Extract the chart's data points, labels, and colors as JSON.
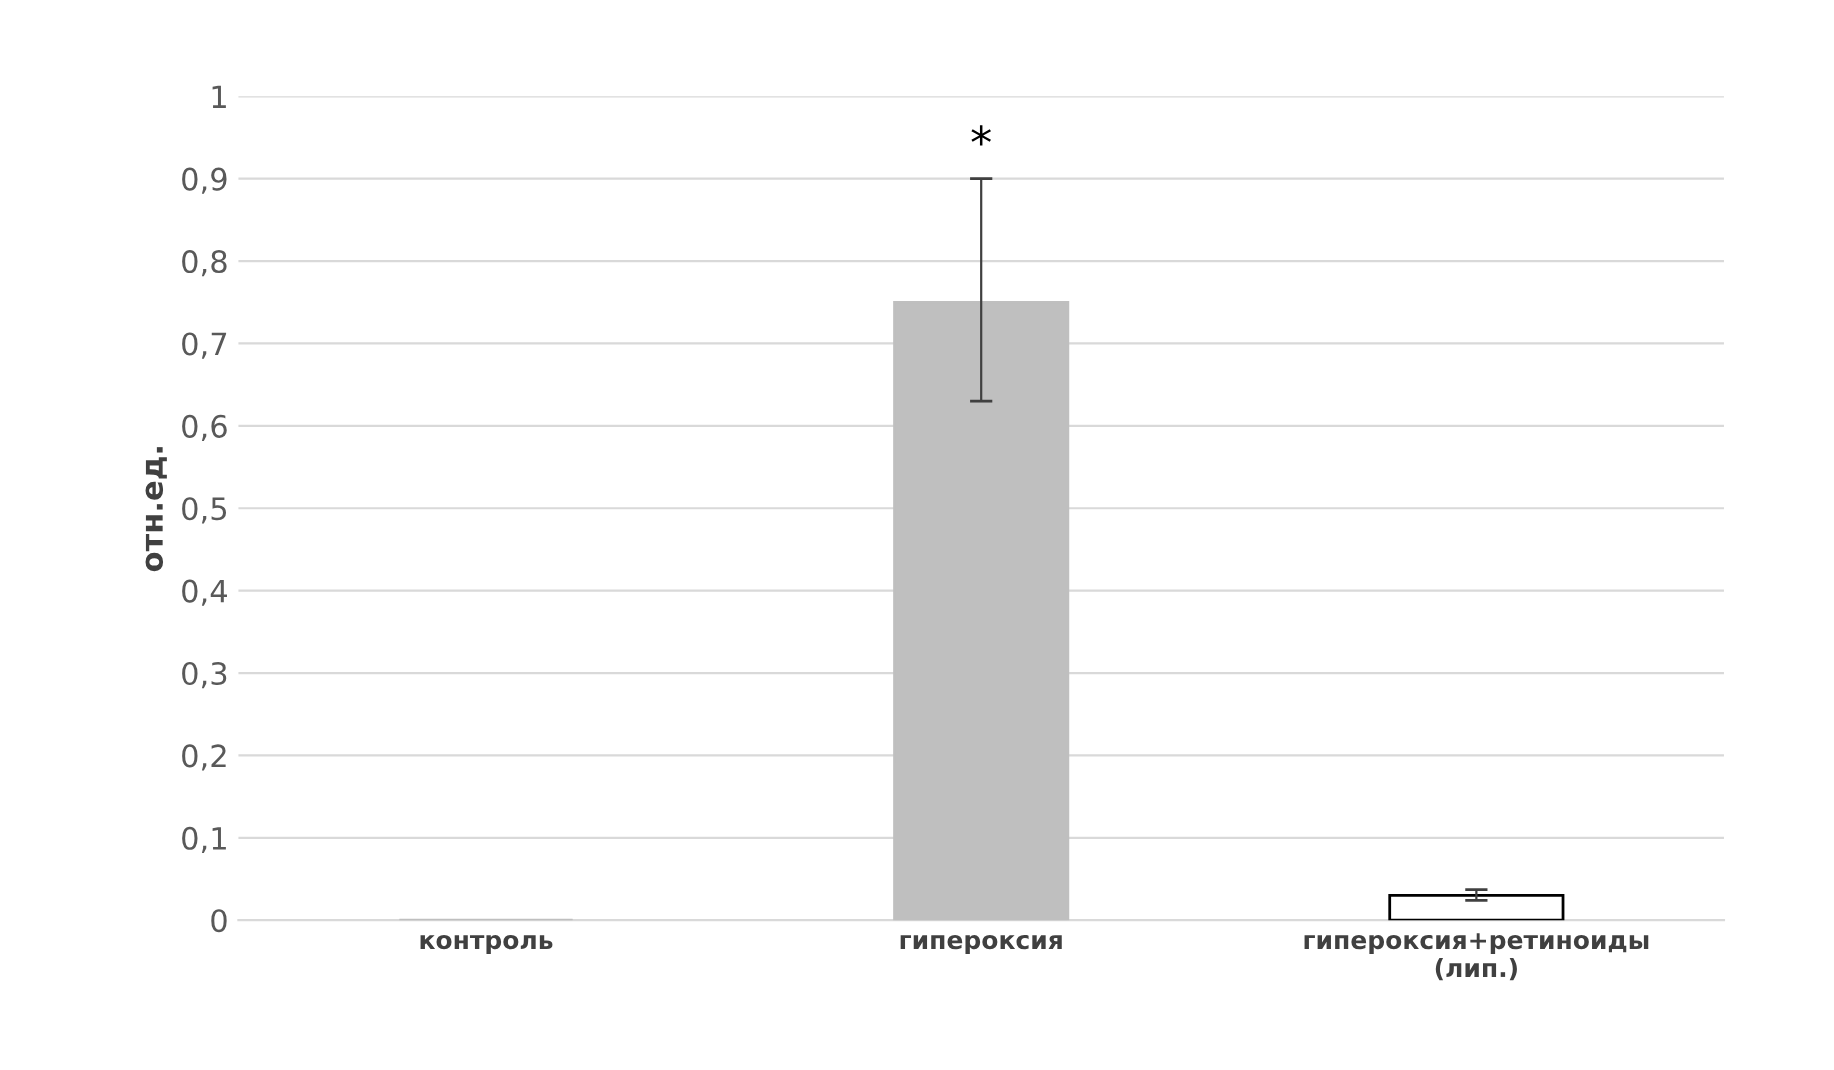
{
  "chart_data": {
    "type": "bar",
    "ylabel": "отн.ед.",
    "categories": [
      "контроль",
      "гипероксия",
      "гипероксия+ретиноиды\n(лип.)"
    ],
    "values": [
      0,
      0.75,
      0.03
    ],
    "colors": [
      "#bfbfbf",
      "#bfbfbf",
      "#ffffff"
    ],
    "errors": [
      null,
      [
        0.63,
        0.9
      ],
      [
        0.024,
        0.037
      ]
    ],
    "ylim": [
      0,
      1
    ],
    "yticks": [
      {
        "value": 0,
        "label": "0"
      },
      {
        "value": 0.1,
        "label": "0,1"
      },
      {
        "value": 0.2,
        "label": "0,2"
      },
      {
        "value": 0.3,
        "label": "0,3"
      },
      {
        "value": 0.4,
        "label": "0,4"
      },
      {
        "value": 0.5,
        "label": "0,5"
      },
      {
        "value": 0.6,
        "label": "0,6"
      },
      {
        "value": 0.7,
        "label": "0,7"
      },
      {
        "value": 0.8,
        "label": "0,8"
      },
      {
        "value": 0.9,
        "label": "0,9"
      },
      {
        "value": 1,
        "label": "1"
      }
    ],
    "grid": "y",
    "annotations": [
      {
        "text": "*",
        "x": "гипероксия",
        "y": 0.9
      }
    ]
  }
}
